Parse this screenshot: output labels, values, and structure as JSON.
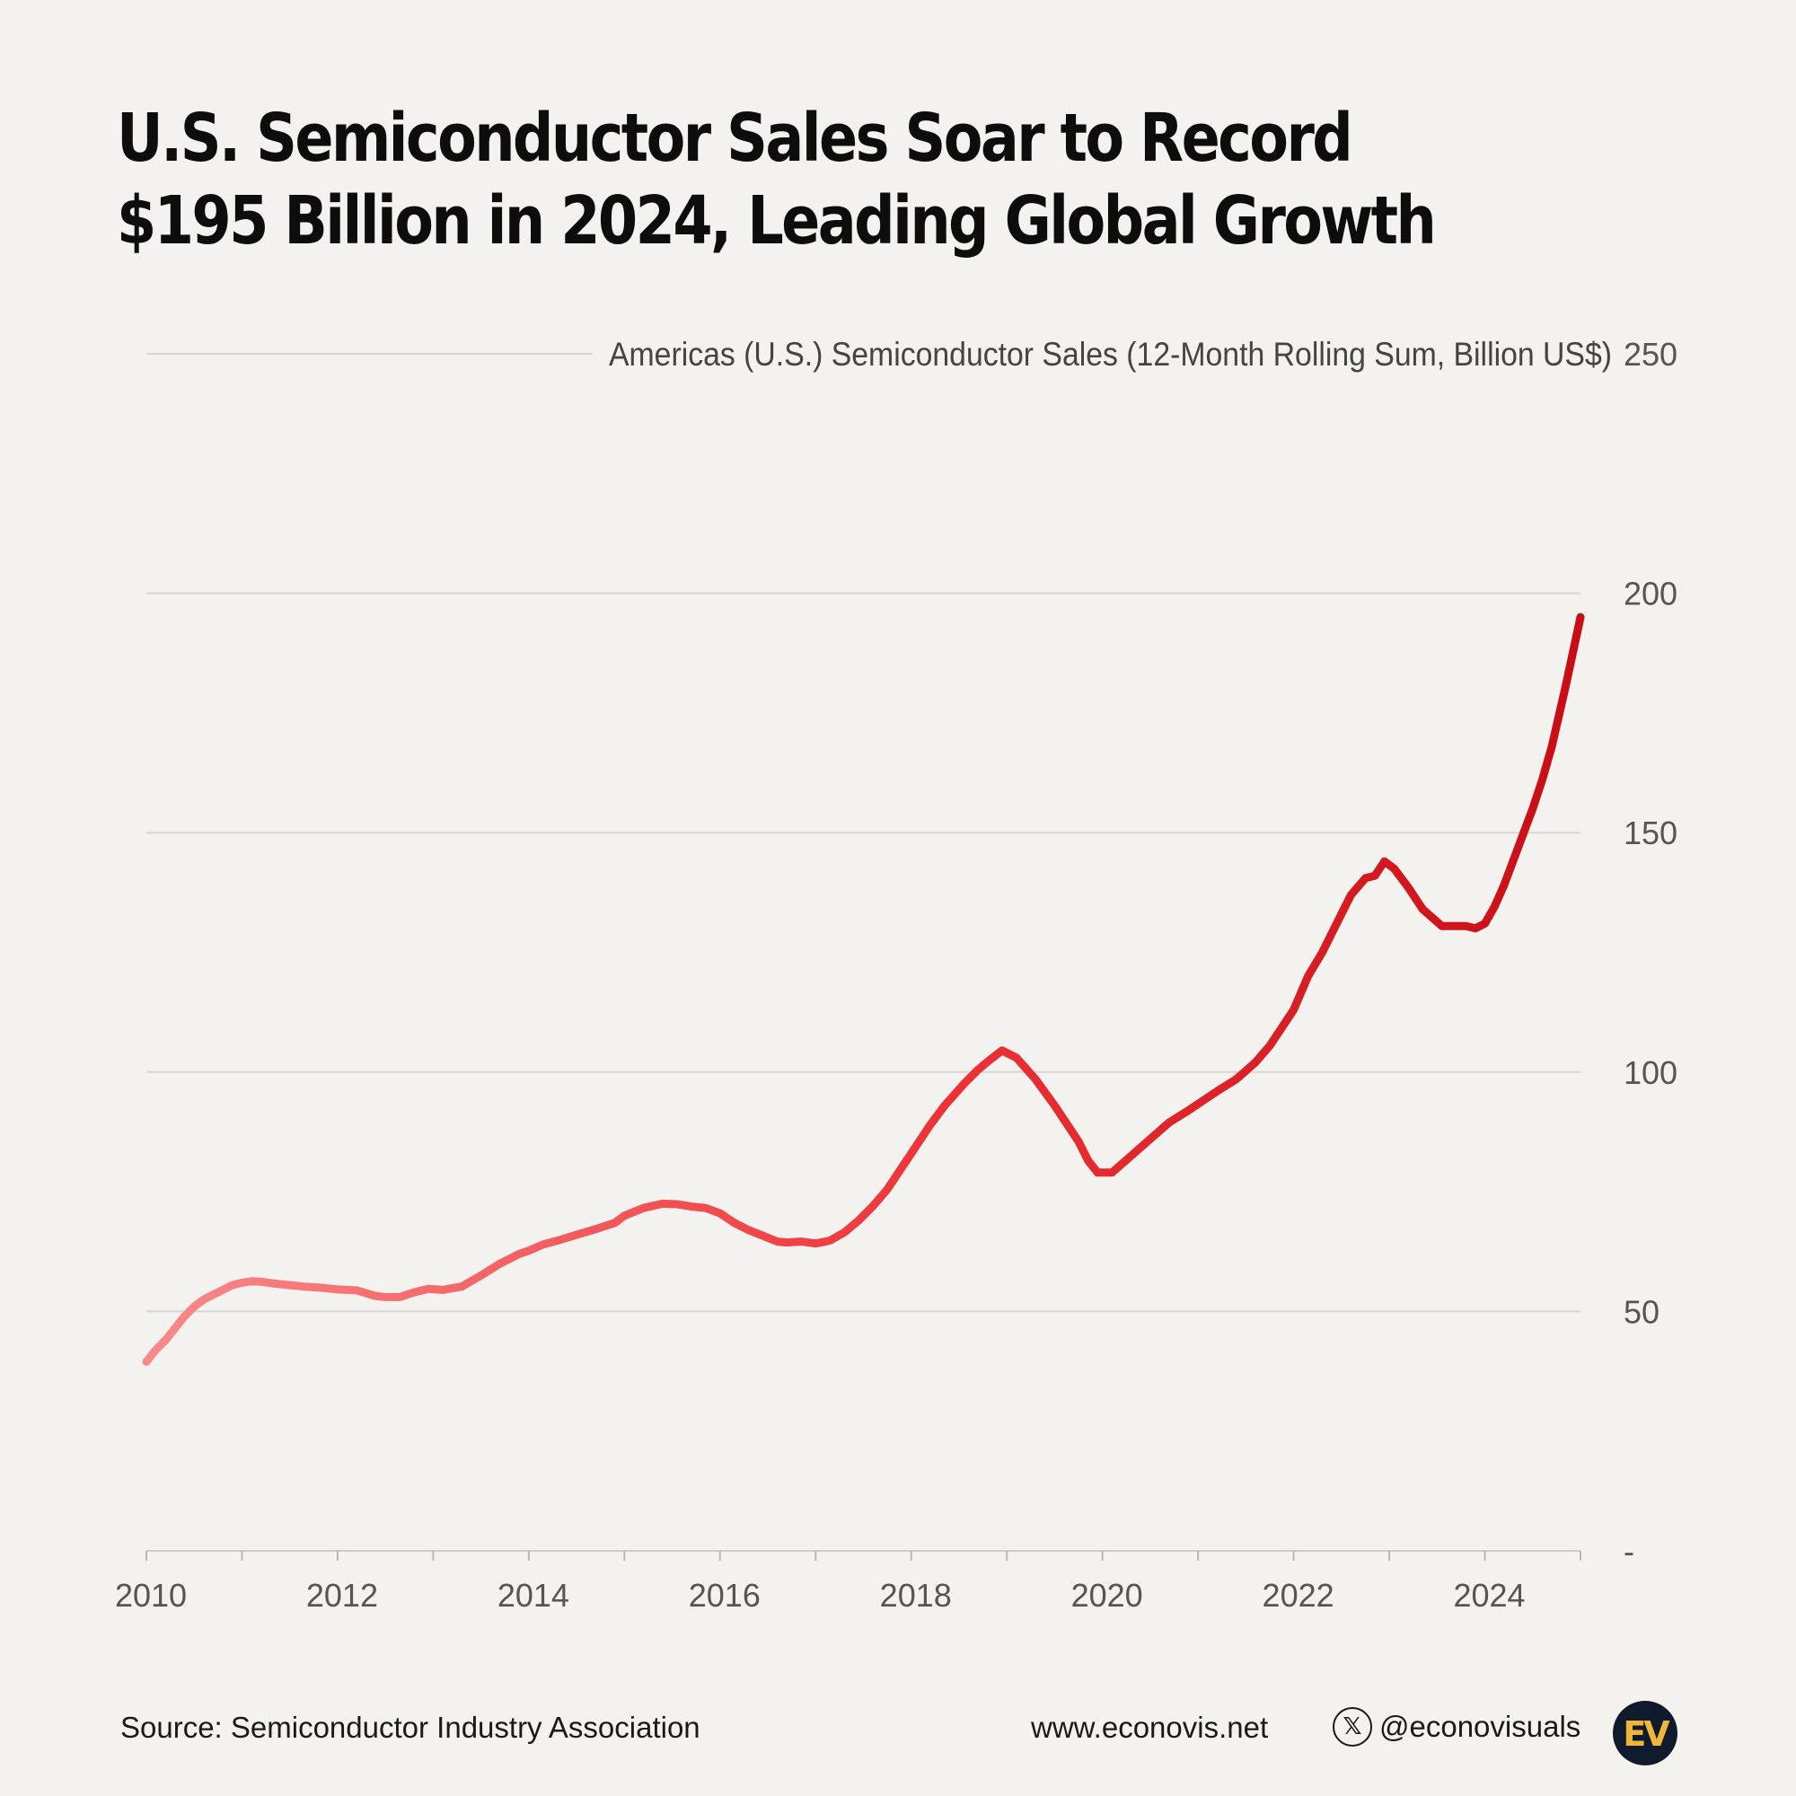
{
  "title": "U.S. Semiconductor Sales Soar to Record $195 Billion in 2024, Leading Global Growth",
  "footer": {
    "source": "Source: Semiconductor Industry Association",
    "website": "www.econovis.net",
    "social": "@econovisuals",
    "logo_text": "EV"
  },
  "icons": {
    "social": "x-icon",
    "logo": "econovis-logo-icon"
  },
  "colors": {
    "background": "#f4f2ef",
    "line_start": "#f88a8a",
    "line_mid": "#ee3338",
    "line_end": "#c80d14",
    "gridline": "#d9d6d2",
    "logo_background": "#0f1b2d",
    "logo_text": "#f0b63a"
  },
  "chart_data": {
    "type": "line",
    "title": "Americas (U.S.) Semiconductor Sales (12-Month Rolling Sum, Billion US$)",
    "xlabel": "",
    "ylabel": "",
    "xlim": [
      2010,
      2025
    ],
    "ylim": [
      0,
      250
    ],
    "y_ticks": [
      {
        "value": 250,
        "label": "250"
      },
      {
        "value": 200,
        "label": "200"
      },
      {
        "value": 150,
        "label": "150"
      },
      {
        "value": 100,
        "label": "100"
      },
      {
        "value": 50,
        "label": "50"
      },
      {
        "value": 0,
        "label": "-"
      }
    ],
    "x_tick_labels": [
      {
        "value": 2010,
        "label": "2010"
      },
      {
        "value": 2012,
        "label": "2012"
      },
      {
        "value": 2014,
        "label": "2014"
      },
      {
        "value": 2016,
        "label": "2016"
      },
      {
        "value": 2018,
        "label": "2018"
      },
      {
        "value": 2020,
        "label": "2020"
      },
      {
        "value": 2022,
        "label": "2022"
      },
      {
        "value": 2024,
        "label": "2024"
      }
    ],
    "x_minor_ticks": [
      2010,
      2011,
      2012,
      2013,
      2014,
      2015,
      2016,
      2017,
      2018,
      2019,
      2020,
      2021,
      2022,
      2023,
      2024,
      2025
    ],
    "grid": true,
    "y_axis_position": "right",
    "series": [
      {
        "x": [
          2010.0,
          2010.1,
          2010.2,
          2010.3,
          2010.4,
          2010.5,
          2010.6,
          2010.7,
          2010.8,
          2010.9,
          2011.0,
          2011.1,
          2011.2,
          2011.35,
          2011.5,
          2011.65,
          2011.8,
          2012.0,
          2012.2,
          2012.4,
          2012.5,
          2012.65,
          2012.8,
          2012.95,
          2013.1,
          2013.3,
          2013.5,
          2013.7,
          2013.9,
          2014.0,
          2014.15,
          2014.3,
          2014.5,
          2014.7,
          2014.9,
          2015.0,
          2015.2,
          2015.4,
          2015.55,
          2015.7,
          2015.85,
          2016.0,
          2016.15,
          2016.3,
          2016.45,
          2016.6,
          2016.7,
          2016.85,
          2017.0,
          2017.15,
          2017.3,
          2017.45,
          2017.6,
          2017.75,
          2017.9,
          2018.05,
          2018.2,
          2018.35,
          2018.55,
          2018.7,
          2018.82,
          2018.95,
          2019.1,
          2019.3,
          2019.5,
          2019.65,
          2019.75,
          2019.85,
          2019.95,
          2020.1,
          2020.3,
          2020.5,
          2020.7,
          2020.9,
          2021.05,
          2021.2,
          2021.4,
          2021.6,
          2021.75,
          2021.9,
          2022.0,
          2022.15,
          2022.3,
          2022.5,
          2022.6,
          2022.75,
          2022.85,
          2022.95,
          2023.05,
          2023.2,
          2023.35,
          2023.55,
          2023.7,
          2023.8,
          2023.9,
          2024.0,
          2024.1,
          2024.2,
          2024.35,
          2024.5,
          2024.6,
          2024.7,
          2024.85,
          2025.0
        ],
        "y": [
          39.5,
          42,
          44,
          46.5,
          49,
          51,
          52.5,
          53.5,
          54.5,
          55.5,
          56,
          56.3,
          56.2,
          55.8,
          55.5,
          55.2,
          55,
          54.6,
          54.4,
          53.2,
          53,
          53,
          54,
          54.7,
          54.5,
          55.2,
          57.5,
          60,
          62,
          62.7,
          64,
          64.8,
          66,
          67.2,
          68.5,
          70,
          71.6,
          72.5,
          72.4,
          71.9,
          71.6,
          70.5,
          68.5,
          67,
          65.8,
          64.6,
          64.4,
          64.6,
          64.2,
          64.8,
          66.5,
          69,
          72,
          75.5,
          80,
          84.5,
          89,
          93,
          97.5,
          100.5,
          102.5,
          104.5,
          103,
          98.5,
          93,
          88.5,
          85.5,
          81.5,
          79,
          79,
          82.5,
          86,
          89.5,
          92,
          94,
          96,
          98.5,
          102,
          105.5,
          110,
          113,
          120,
          125,
          133,
          137,
          140.5,
          141,
          144,
          142.5,
          138.5,
          134,
          130.5,
          130.5,
          130.5,
          130,
          131,
          134.5,
          139,
          147,
          155,
          161,
          168,
          181,
          195
        ]
      }
    ]
  }
}
